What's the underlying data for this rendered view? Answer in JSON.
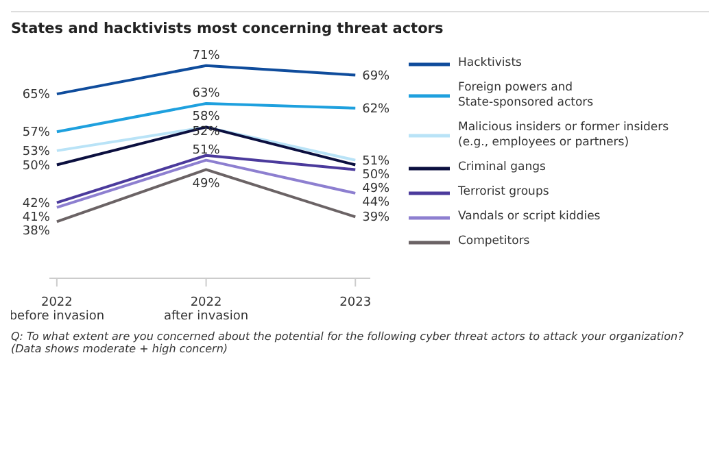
{
  "chart_data": {
    "type": "line",
    "title": "States and hacktivists most concerning threat actors",
    "categories": [
      "2022\nbefore invasion",
      "2022\nafter invasion",
      "2023"
    ],
    "series": [
      {
        "name": "Hacktivists",
        "color": "#0f4c9c",
        "values": [
          65,
          71,
          69
        ],
        "value_labels": [
          "65%",
          "71%",
          "69%"
        ]
      },
      {
        "name": "Foreign powers and\nState-sponsored actors",
        "color": "#1ea0de",
        "values": [
          57,
          63,
          62
        ],
        "value_labels": [
          "57%",
          "63%",
          "62%"
        ]
      },
      {
        "name": "Malicious insiders or former insiders\n(e.g., employees or partners)",
        "color": "#b9e3f7",
        "values": [
          53,
          58,
          51
        ],
        "value_labels": [
          "53%",
          "58%",
          "51%"
        ]
      },
      {
        "name": "Criminal gangs",
        "color": "#0b0f3f",
        "values": [
          50,
          58,
          50
        ],
        "value_labels": [
          "50%",
          null,
          "50%"
        ]
      },
      {
        "name": "Terrorist groups",
        "color": "#4b3a9c",
        "values": [
          42,
          52,
          49
        ],
        "value_labels": [
          "42%",
          "52%",
          "49%"
        ]
      },
      {
        "name": "Vandals or script kiddies",
        "color": "#8d7fd0",
        "values": [
          41,
          51,
          44
        ],
        "value_labels": [
          "41%",
          "51%",
          "44%"
        ]
      },
      {
        "name": "Competitors",
        "color": "#6b6365",
        "values": [
          38,
          49,
          39
        ],
        "value_labels": [
          "38%",
          "49%",
          "39%"
        ]
      }
    ],
    "legend": "right",
    "grid": false,
    "marker": "none",
    "line_style": "solid",
    "annotations": [
      "Q: To what extent are you concerned about the potential for the following cyber threat actors to attack your organization? (Data shows moderate + high concern)"
    ]
  }
}
